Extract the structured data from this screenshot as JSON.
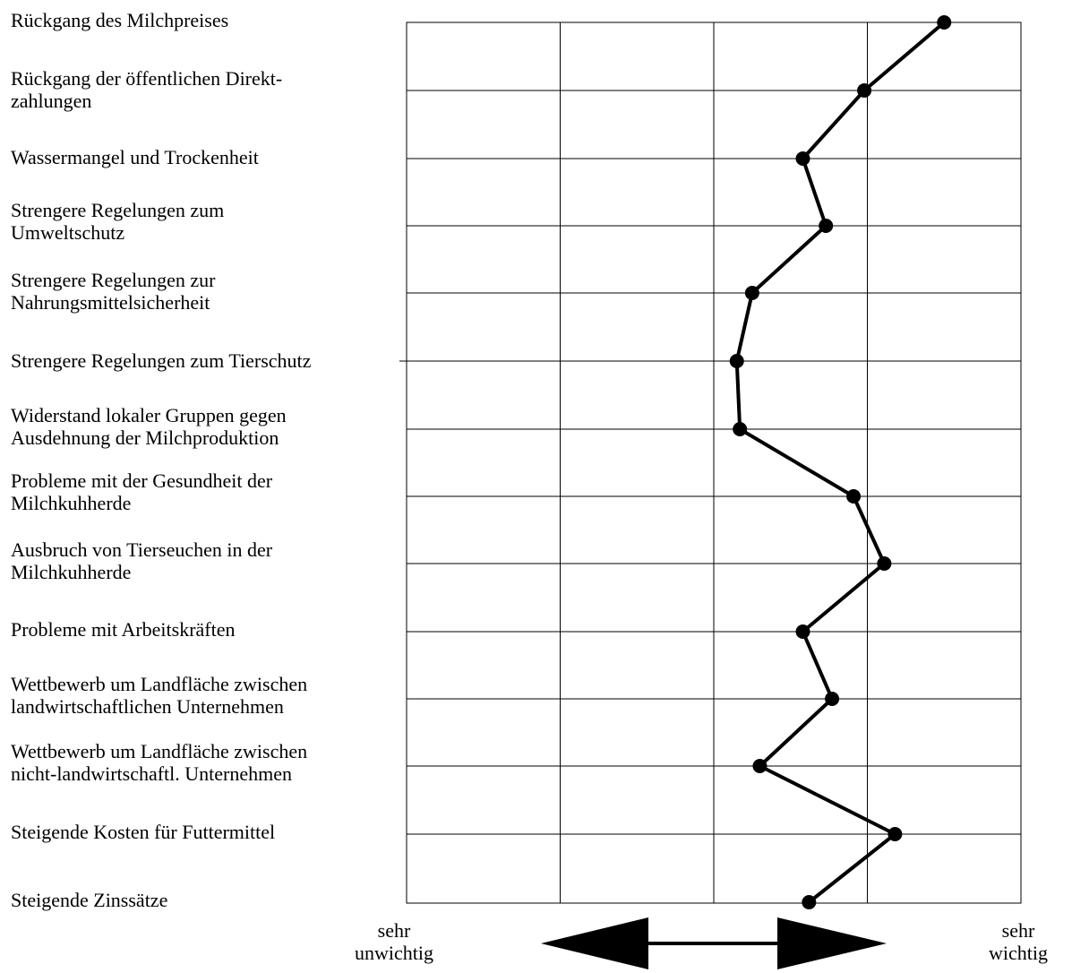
{
  "chart_data": {
    "type": "line",
    "orientation": "horizontal",
    "categories": [
      "Rückgang des Milchpreises",
      "Rückgang der öffentlichen Direkt-\nzahlungen",
      "Wassermangel und Trockenheit",
      "Strengere Regelungen zum\nUmweltschutz",
      "Strengere Regelungen zur\nNahrungsmittelsicherheit",
      "Strengere Regelungen zum Tierschutz",
      "Widerstand lokaler Gruppen gegen\nAusdehnung der Milchproduktion",
      "Probleme mit der Gesundheit der\nMilchkuhherde",
      "Ausbruch von Tierseuchen in der\nMilchkuhherde",
      "Probleme mit Arbeitskräften",
      "Wettbewerb um Landfläche zwischen\nlandwirtschaftlichen Unternehmen",
      "Wettbewerb um Landfläche zwischen\nnicht-landwirtschaftl. Unternehmen",
      "Steigende Kosten für Futtermittel",
      "Steigende Zinssätze"
    ],
    "values": [
      3.5,
      2.98,
      2.58,
      2.73,
      2.25,
      2.15,
      2.17,
      2.91,
      3.11,
      2.58,
      2.77,
      2.3,
      3.18,
      2.62
    ],
    "xlim": [
      0,
      4
    ],
    "grid": true,
    "axis_end_labels": {
      "left": "sehr\nunwichtig",
      "right": "sehr\nwichtig"
    }
  }
}
